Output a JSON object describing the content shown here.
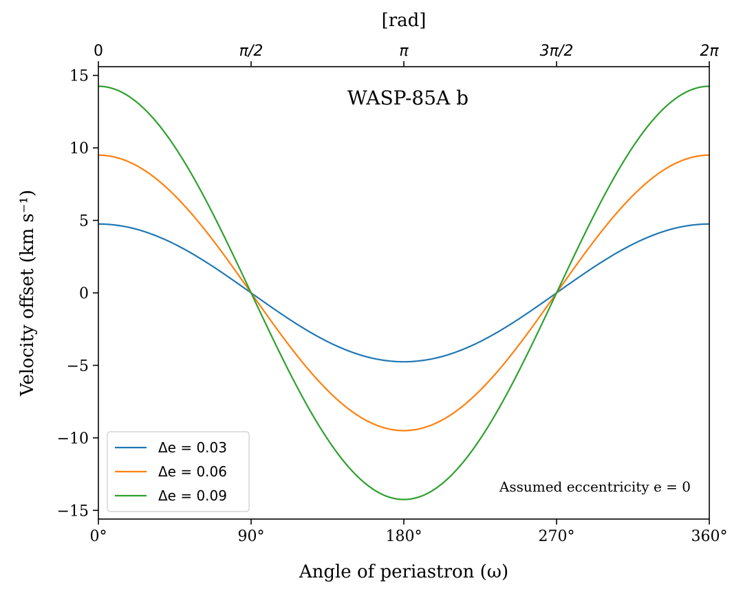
{
  "chart_data": {
    "type": "line",
    "title": "WASP-85A b",
    "xlabel": "Angle of periastron (ω)",
    "ylabel": "Velocity offset (km s⁻¹)",
    "top_axis_label": "[rad]",
    "xlim": [
      0,
      360
    ],
    "ylim": [
      -15.6,
      15.6
    ],
    "x_ticks": [
      0,
      90,
      180,
      270,
      360
    ],
    "x_tick_labels": [
      "0°",
      "90°",
      "180°",
      "270°",
      "360°"
    ],
    "top_ticks": [
      0,
      90,
      180,
      270,
      360
    ],
    "top_tick_labels": [
      "0",
      "π/2",
      "π",
      "3π/2",
      "2π"
    ],
    "y_ticks": [
      15,
      10,
      5,
      0,
      -5,
      -10,
      -15
    ],
    "y_tick_labels": [
      "15",
      "10",
      "5",
      "0",
      "−5",
      "−10",
      "−15"
    ],
    "curve": "amplitude * cos(omega)",
    "series": [
      {
        "name": "Δe = 0.03",
        "amplitude": 4.75,
        "color": "#1f77b4"
      },
      {
        "name": "Δe = 0.06",
        "amplitude": 9.5,
        "color": "#ff7f0e"
      },
      {
        "name": "Δe = 0.09",
        "amplitude": 14.25,
        "color": "#2ca02c"
      }
    ],
    "legend_position": "lower-left",
    "annotation": "Assumed eccentricity e = 0",
    "grid": false
  }
}
